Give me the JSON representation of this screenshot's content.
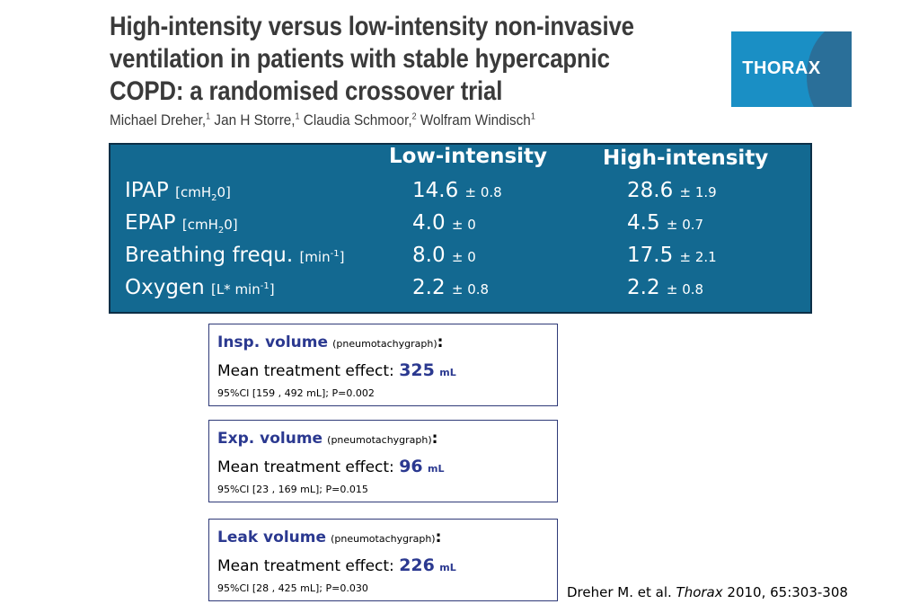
{
  "title": {
    "line1": "High-intensity versus low-intensity non-invasive",
    "line2": "ventilation in patients with stable hypercapnic",
    "line3": "COPD: a randomised crossover trial"
  },
  "authors": [
    {
      "name": "Michael Dreher,",
      "aff": "1"
    },
    {
      "name": " Jan H Storre,",
      "aff": "1"
    },
    {
      "name": " Claudia Schmoor,",
      "aff": "2"
    },
    {
      "name": " Wolfram Windisch",
      "aff": "1"
    }
  ],
  "logo": {
    "text": "THORAX"
  },
  "table": {
    "col_low": "Low-intensity",
    "col_high": "High-intensity",
    "rows": [
      {
        "name": "IPAP",
        "unit_pre": "[cmH",
        "unit_sub": "2",
        "unit_post": "0]",
        "low": "14.6",
        "low_sd": "± 0.8",
        "high": "28.6",
        "high_sd": "± 1.9"
      },
      {
        "name": "EPAP",
        "unit_pre": "[cmH",
        "unit_sub": "2",
        "unit_post": "0]",
        "low": "4.0",
        "low_sd": "± 0",
        "high": "4.5",
        "high_sd": "± 0.7"
      },
      {
        "name": "Breathing frequ.",
        "unit_pre": "[min",
        "unit_sup": "-1",
        "unit_post": "]",
        "low": "8.0",
        "low_sd": "± 0",
        "high": "17.5",
        "high_sd": "± 2.1"
      },
      {
        "name": "Oxygen",
        "unit_pre": "[L* min",
        "unit_sup": "-1",
        "unit_post": "]",
        "low": "2.2",
        "low_sd": "± 0.8",
        "high": "2.2",
        "high_sd": "± 0.8"
      }
    ]
  },
  "boxes": [
    {
      "name": "Insp. volume",
      "method": "(pneumotachygraph)",
      "colon": ":",
      "effect_label": "Mean treatment effect: ",
      "value": "325",
      "unit": "mL",
      "ci": "95%CI [159 , 492 mL]; P=0.002"
    },
    {
      "name": "Exp. volume",
      "method": "(pneumotachygraph)",
      "colon": ":",
      "effect_label": "Mean treatment effect: ",
      "value": "96",
      "unit": "mL",
      "ci": "95%CI [23 , 169 mL]; P=0.015"
    },
    {
      "name": "Leak volume",
      "method": "(pneumotachygraph)",
      "colon": ":",
      "effect_label": "Mean treatment effect: ",
      "value": "226",
      "unit": "mL",
      "ci": "95%CI [28 , 425 mL]; P=0.030"
    }
  ],
  "citation": {
    "prefix": "Dreher M. et al. ",
    "journal": "Thorax",
    "suffix": " 2010, 65:303-308"
  },
  "colors": {
    "panel": "#136991",
    "accent": "#2b3990",
    "logo": "#1a8fc5"
  }
}
